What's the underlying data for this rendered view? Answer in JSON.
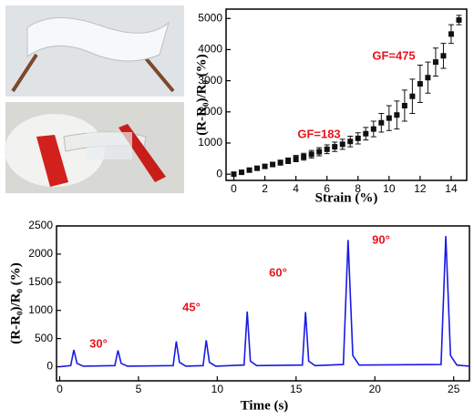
{
  "chart_data": [
    {
      "type": "scatter",
      "xlabel": "Strain (%)",
      "ylabel": "(R-R₀)/R₀ (%)",
      "x": [
        0,
        0.5,
        1,
        1.5,
        2,
        2.5,
        3,
        3.5,
        4,
        4.5,
        5,
        5.5,
        6,
        6.5,
        7,
        7.5,
        8,
        8.5,
        9,
        9.5,
        10,
        10.5,
        11,
        11.5,
        12,
        12.5,
        13,
        13.5,
        14,
        14.5
      ],
      "values": [
        0,
        60,
        130,
        190,
        250,
        310,
        370,
        430,
        500,
        560,
        640,
        720,
        800,
        880,
        960,
        1050,
        1150,
        1300,
        1450,
        1650,
        1800,
        1900,
        2200,
        2500,
        2900,
        3100,
        3600,
        3800,
        4500,
        4950
      ],
      "errors": [
        20,
        30,
        40,
        50,
        60,
        70,
        80,
        90,
        100,
        110,
        120,
        130,
        140,
        150,
        160,
        170,
        180,
        200,
        250,
        300,
        400,
        450,
        500,
        550,
        600,
        500,
        450,
        400,
        300,
        150
      ],
      "color": "#111111",
      "annotations": [
        "GF=183",
        "GF=475"
      ],
      "annotation_color": "#e8141c",
      "xlim": [
        -0.5,
        15
      ],
      "ylim": [
        -200,
        5300
      ],
      "xticks": [
        0,
        2,
        4,
        6,
        8,
        10,
        12,
        14
      ],
      "yticks": [
        0,
        1000,
        2000,
        3000,
        4000,
        5000
      ],
      "grid": false
    },
    {
      "type": "line",
      "xlabel": "Time (s)",
      "ylabel": "(R-R₀)/R₀ (%)",
      "x": [
        0,
        0.7,
        0.9,
        1.1,
        1.5,
        3.5,
        3.7,
        3.9,
        4.3,
        7.2,
        7.4,
        7.6,
        8.0,
        9.1,
        9.3,
        9.5,
        9.9,
        11.7,
        11.9,
        12.1,
        12.5,
        15.4,
        15.6,
        15.8,
        16.2,
        18.0,
        18.3,
        18.6,
        19.0,
        24.2,
        24.5,
        24.8,
        25.2,
        26
      ],
      "values": [
        0,
        20,
        300,
        60,
        10,
        20,
        290,
        60,
        10,
        20,
        450,
        80,
        10,
        20,
        470,
        80,
        10,
        30,
        980,
        100,
        20,
        30,
        970,
        100,
        20,
        40,
        2250,
        200,
        30,
        40,
        2320,
        200,
        30,
        10
      ],
      "color": "#1a1ae6",
      "annotations": [
        "30°",
        "45°",
        "60°",
        "90°"
      ],
      "annotation_color": "#e8141c",
      "xlim": [
        -0.2,
        26
      ],
      "ylim": [
        -250,
        2500
      ],
      "xticks": [
        0,
        5,
        10,
        15,
        20,
        25
      ],
      "yticks": [
        0,
        500,
        1000,
        1500,
        2000,
        2500
      ],
      "grid": false
    }
  ]
}
